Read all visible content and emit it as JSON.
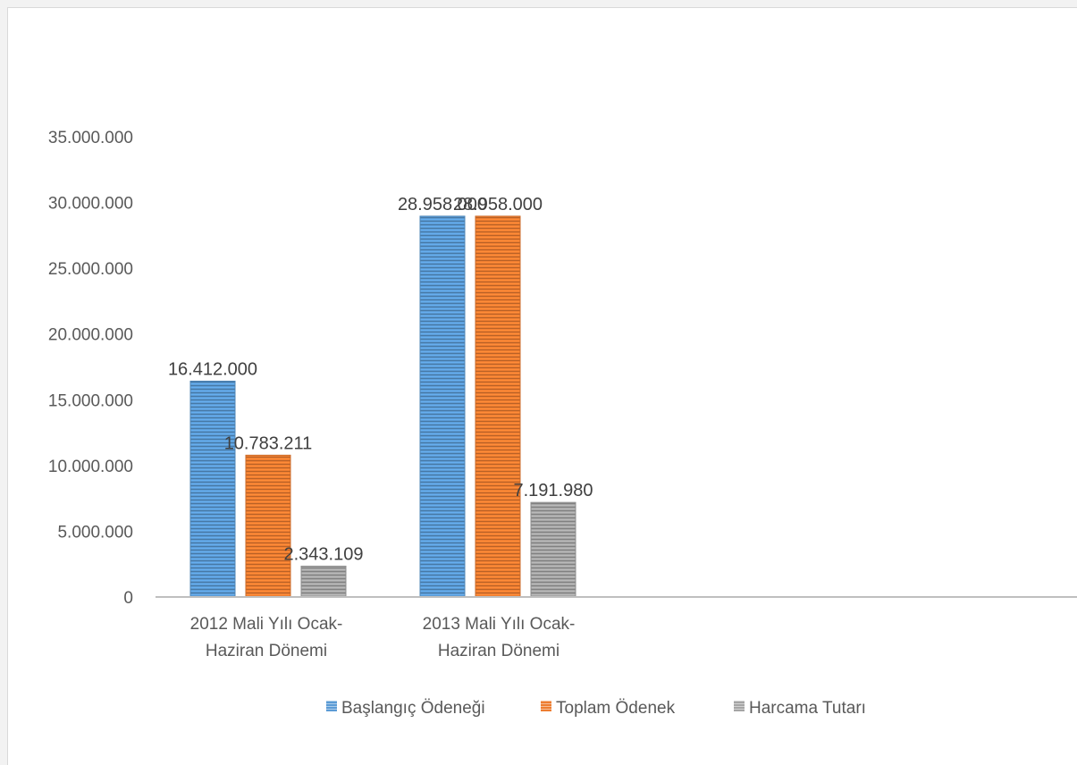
{
  "chart_data": {
    "type": "bar",
    "title": "",
    "xlabel": "",
    "ylabel": "",
    "categories": [
      [
        "2012 Mali Yılı Ocak-",
        "Haziran Dönemi"
      ],
      [
        "2013 Mali Yılı Ocak-",
        "Haziran Dönemi"
      ]
    ],
    "series": [
      {
        "name": "Başlangıç Ödeneği",
        "color": "#5b9bd5",
        "values": [
          16412000,
          28958000
        ],
        "labels": [
          "16.412.000",
          "28.958.000"
        ]
      },
      {
        "name": "Toplam Ödenek",
        "color": "#ed7d31",
        "values": [
          10783211,
          28958000
        ],
        "labels": [
          "10.783.211",
          "28.958.000"
        ]
      },
      {
        "name": "Harcama Tutarı",
        "color": "#a5a5a5",
        "values": [
          2343109,
          7191980
        ],
        "labels": [
          "2.343.109",
          "7.191.980"
        ]
      }
    ],
    "ylim": [
      0,
      35000000
    ],
    "yticks": [
      0,
      5000000,
      10000000,
      15000000,
      20000000,
      25000000,
      30000000,
      35000000
    ],
    "ytick_labels": [
      "0",
      "5.000.000",
      "10.000.000",
      "15.000.000",
      "20.000.000",
      "25.000.000",
      "30.000.000",
      "35.000.000"
    ],
    "grid": false,
    "legend_position": "bottom",
    "bar_pattern": "horizontal-lines"
  }
}
